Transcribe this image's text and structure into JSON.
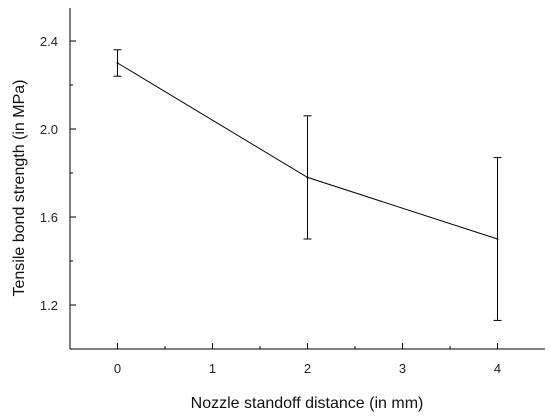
{
  "chart_data": {
    "type": "line",
    "xlabel": "Nozzle standoff distance (in mm)",
    "ylabel": "Tensile bond strength (in MPa)",
    "xlim": [
      -0.5,
      4.5
    ],
    "ylim": [
      1.0,
      2.55
    ],
    "xticks": [
      0,
      1,
      2,
      3,
      4
    ],
    "yticks": [
      1.2,
      1.6,
      2.0,
      2.4
    ],
    "x_tick_labels": [
      "0",
      "1",
      "2",
      "3",
      "4"
    ],
    "y_tick_labels": [
      "1.2",
      "1.6",
      "2.0",
      "2.4"
    ],
    "grid": false,
    "legend": "none",
    "series": [
      {
        "x": [
          0,
          2,
          4
        ],
        "y": [
          2.3,
          1.78,
          1.5
        ],
        "error_low": [
          2.24,
          1.5,
          1.13
        ],
        "error_high": [
          2.36,
          2.06,
          1.87
        ],
        "color": "#000000"
      }
    ]
  }
}
